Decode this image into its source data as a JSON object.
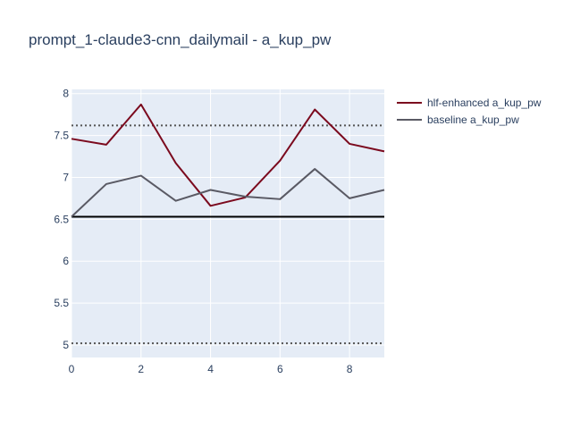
{
  "chart_data": {
    "type": "line",
    "title": "prompt_1-claude3-cnn_dailymail - a_kup_pw",
    "xlabel": "",
    "ylabel": "",
    "xlim": [
      0,
      9
    ],
    "ylim": [
      4.85,
      8.05
    ],
    "x_ticks": [
      0,
      2,
      4,
      6,
      8
    ],
    "x_tick_labels": [
      "0",
      "2",
      "4",
      "6",
      "8"
    ],
    "y_ticks": [
      5,
      5.5,
      6,
      6.5,
      7,
      7.5,
      8
    ],
    "y_tick_labels": [
      "5",
      "5.5",
      "6",
      "6.5",
      "7",
      "7.5",
      "8"
    ],
    "grid": true,
    "legend_position": "top-right outside",
    "x": [
      0,
      1,
      2,
      3,
      4,
      5,
      6,
      7,
      8,
      9
    ],
    "series": [
      {
        "name": "hlf-enhanced a_kup_pw",
        "color": "#7b0a1e",
        "values": [
          7.46,
          7.39,
          7.87,
          7.17,
          6.66,
          6.76,
          7.2,
          7.81,
          7.4,
          7.31
        ]
      },
      {
        "name": "baseline a_kup_pw",
        "color": "#5a5a64",
        "values": [
          6.53,
          6.92,
          7.02,
          6.72,
          6.85,
          6.77,
          6.74,
          7.1,
          6.75,
          6.85
        ]
      }
    ],
    "reference_lines": [
      {
        "style": "dotted",
        "color": "#555555",
        "y": 7.62
      },
      {
        "style": "solid",
        "color": "#000000",
        "y": 6.53
      },
      {
        "style": "dotted",
        "color": "#555555",
        "y": 5.02
      }
    ],
    "colors": {
      "plot_bg": "#e5ecf6",
      "grid": "#ffffff",
      "text": "#2a3f5f"
    }
  }
}
